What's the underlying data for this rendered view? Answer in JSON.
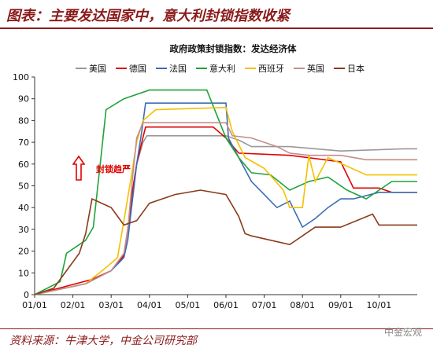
{
  "header": {
    "title": "图表：主要发达国家中，意大利封锁指数收紧"
  },
  "footer": {
    "source": "资料来源：牛津大学，中金公司研究部",
    "brand": "中金宏观"
  },
  "annotation": {
    "text": "封锁趋严",
    "icon": "up-arrow-outline-icon",
    "color": "#E00000"
  },
  "chart_data": {
    "type": "line",
    "title": "政府政策封锁指数：发达经济体",
    "xlabel": "",
    "ylabel": "",
    "ylim": [
      0,
      100
    ],
    "yticks": [
      0,
      10,
      20,
      30,
      40,
      50,
      60,
      70,
      80,
      90,
      100
    ],
    "xticks": [
      "01/01",
      "02/01",
      "03/01",
      "04/01",
      "05/01",
      "06/01",
      "07/01",
      "08/01",
      "09/01",
      "10/01"
    ],
    "legend_position": "top",
    "grid": false,
    "series": [
      {
        "name": "美国",
        "color": "#999999",
        "points": [
          [
            0,
            0
          ],
          [
            40,
            5
          ],
          [
            60,
            11
          ],
          [
            70,
            18
          ],
          [
            73,
            30
          ],
          [
            77,
            45
          ],
          [
            80,
            60
          ],
          [
            85,
            70
          ],
          [
            88,
            73
          ],
          [
            150,
            73
          ],
          [
            155,
            72
          ],
          [
            160,
            71
          ],
          [
            170,
            68
          ],
          [
            200,
            68
          ],
          [
            240,
            66
          ],
          [
            290,
            67
          ],
          [
            300,
            67
          ]
        ]
      },
      {
        "name": "德国",
        "color": "#E00000",
        "points": [
          [
            0,
            0
          ],
          [
            45,
            7
          ],
          [
            60,
            11
          ],
          [
            70,
            18
          ],
          [
            73,
            30
          ],
          [
            76,
            45
          ],
          [
            80,
            60
          ],
          [
            84,
            70
          ],
          [
            87,
            77
          ],
          [
            140,
            77
          ],
          [
            150,
            72
          ],
          [
            160,
            65
          ],
          [
            200,
            64
          ],
          [
            240,
            61
          ],
          [
            250,
            49
          ],
          [
            270,
            49
          ],
          [
            280,
            47
          ],
          [
            300,
            47
          ]
        ]
      },
      {
        "name": "法国",
        "color": "#3A6DB4",
        "points": [
          [
            0,
            0
          ],
          [
            40,
            5
          ],
          [
            60,
            11
          ],
          [
            70,
            17
          ],
          [
            73,
            25
          ],
          [
            76,
            40
          ],
          [
            80,
            60
          ],
          [
            84,
            75
          ],
          [
            87,
            88
          ],
          [
            150,
            88
          ],
          [
            152,
            72
          ],
          [
            160,
            63
          ],
          [
            170,
            52
          ],
          [
            180,
            46
          ],
          [
            190,
            40
          ],
          [
            200,
            43
          ],
          [
            210,
            31
          ],
          [
            220,
            35
          ],
          [
            230,
            40
          ],
          [
            240,
            44
          ],
          [
            250,
            44
          ],
          [
            270,
            47
          ],
          [
            300,
            47
          ]
        ]
      },
      {
        "name": "意大利",
        "color": "#1FA33A",
        "points": [
          [
            0,
            0
          ],
          [
            20,
            6
          ],
          [
            25,
            19
          ],
          [
            40,
            25
          ],
          [
            46,
            31
          ],
          [
            52,
            63
          ],
          [
            56,
            85
          ],
          [
            70,
            90
          ],
          [
            90,
            94
          ],
          [
            135,
            94
          ],
          [
            150,
            72
          ],
          [
            160,
            63
          ],
          [
            170,
            56
          ],
          [
            185,
            55
          ],
          [
            200,
            48
          ],
          [
            215,
            52
          ],
          [
            230,
            54
          ],
          [
            245,
            48
          ],
          [
            260,
            44
          ],
          [
            280,
            52
          ],
          [
            300,
            52
          ]
        ]
      },
      {
        "name": "西班牙",
        "color": "#F5C000",
        "points": [
          [
            0,
            0
          ],
          [
            40,
            5
          ],
          [
            55,
            12
          ],
          [
            65,
            17
          ],
          [
            70,
            34
          ],
          [
            76,
            55
          ],
          [
            80,
            70
          ],
          [
            85,
            80
          ],
          [
            95,
            85
          ],
          [
            150,
            86
          ],
          [
            155,
            75
          ],
          [
            165,
            63
          ],
          [
            180,
            58
          ],
          [
            195,
            48
          ],
          [
            200,
            40
          ],
          [
            210,
            40
          ],
          [
            215,
            64
          ],
          [
            220,
            52
          ],
          [
            230,
            63
          ],
          [
            245,
            59
          ],
          [
            260,
            55
          ],
          [
            300,
            55
          ]
        ]
      },
      {
        "name": "英国",
        "color": "#C48C8C",
        "points": [
          [
            0,
            0
          ],
          [
            40,
            5
          ],
          [
            60,
            11
          ],
          [
            70,
            19
          ],
          [
            73,
            30
          ],
          [
            77,
            55
          ],
          [
            80,
            72
          ],
          [
            85,
            79
          ],
          [
            150,
            79
          ],
          [
            155,
            73
          ],
          [
            170,
            72
          ],
          [
            190,
            68
          ],
          [
            200,
            65
          ],
          [
            215,
            64
          ],
          [
            240,
            64
          ],
          [
            260,
            62
          ],
          [
            300,
            62
          ]
        ]
      },
      {
        "name": "日本",
        "color": "#8B3A1A",
        "points": [
          [
            0,
            0
          ],
          [
            15,
            3
          ],
          [
            25,
            11
          ],
          [
            35,
            19
          ],
          [
            40,
            28
          ],
          [
            45,
            44
          ],
          [
            60,
            40
          ],
          [
            70,
            32
          ],
          [
            80,
            34
          ],
          [
            90,
            42
          ],
          [
            110,
            46
          ],
          [
            130,
            48
          ],
          [
            150,
            46
          ],
          [
            160,
            36
          ],
          [
            165,
            28
          ],
          [
            170,
            27
          ],
          [
            200,
            23
          ],
          [
            220,
            31
          ],
          [
            240,
            31
          ],
          [
            265,
            37
          ],
          [
            270,
            32
          ],
          [
            300,
            32
          ]
        ]
      }
    ]
  }
}
